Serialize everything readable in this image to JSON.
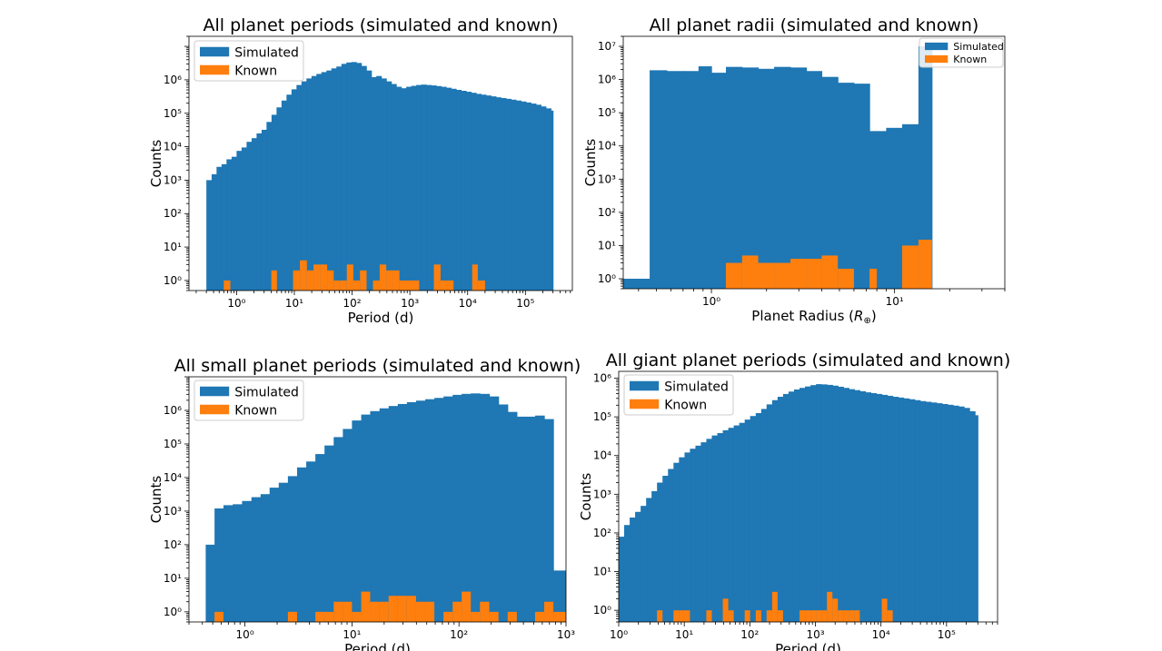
{
  "chart_data": [
    {
      "type": "bar",
      "title": "All planet periods (simulated and known)",
      "xlabel": "Period (d)",
      "ylabel": "Counts",
      "xscale": "log",
      "yscale": "log",
      "xlim": [
        0.15,
        650000
      ],
      "ylim": [
        0.5,
        20000000
      ],
      "x_ticks": [
        1,
        10,
        100,
        1000,
        10000,
        100000
      ],
      "y_ticks": [
        1,
        10,
        100,
        1000,
        10000,
        100000,
        1000000
      ],
      "legend": "top-left",
      "series": [
        {
          "name": "Simulated",
          "color": "#1f77b4",
          "bin_edges": [
            0.3,
            0.37,
            0.45,
            0.55,
            0.67,
            0.82,
            1.0,
            1.22,
            1.49,
            1.82,
            2.22,
            2.71,
            3.3,
            4.03,
            4.92,
            6.0,
            7.32,
            8.93,
            10.9,
            13.3,
            16.2,
            19.8,
            24.1,
            29.4,
            35.9,
            43.8,
            53.4,
            65.2,
            79.5,
            97.0,
            118,
            144,
            176,
            215,
            262,
            320,
            390,
            476,
            580,
            708,
            864,
            1054,
            1286,
            1568,
            1914,
            2335,
            2848,
            3475,
            4240,
            5173,
            6311,
            7699,
            9393,
            11460,
            13981,
            17057,
            20810,
            25388,
            30973,
            37787,
            46100,
            56242,
            68616,
            83712,
            102128,
            124596,
            152008,
            185449,
            226248,
            276022,
            300000
          ],
          "counts": [
            1000,
            1500,
            2500,
            3000,
            4200,
            5000,
            7500,
            9500,
            14000,
            18000,
            25000,
            32000,
            55000,
            90000,
            150000,
            240000,
            360000,
            520000,
            700000,
            900000,
            1100000,
            1300000,
            1500000,
            1700000,
            1900000,
            2200000,
            2500000,
            3000000,
            3300000,
            3400000,
            3200000,
            2600000,
            1900000,
            1200000,
            1300000,
            1100000,
            900000,
            750000,
            620000,
            560000,
            620000,
            660000,
            700000,
            720000,
            700000,
            680000,
            650000,
            620000,
            580000,
            540000,
            500000,
            470000,
            440000,
            410000,
            380000,
            360000,
            340000,
            320000,
            300000,
            285000,
            270000,
            255000,
            240000,
            225000,
            210000,
            195000,
            180000,
            160000,
            140000,
            120000
          ]
        },
        {
          "name": "Known",
          "color": "#ff7f0e",
          "bins": [
            [
              0.6,
              0.78,
              1
            ],
            [
              4.0,
              5.0,
              2
            ],
            [
              9.5,
              12.5,
              2
            ],
            [
              12.5,
              16.5,
              4
            ],
            [
              16.5,
              21.5,
              2
            ],
            [
              21.5,
              28,
              3
            ],
            [
              28,
              37,
              3
            ],
            [
              37,
              48,
              2
            ],
            [
              48,
              62,
              1
            ],
            [
              62,
              81,
              1
            ],
            [
              81,
              105,
              3
            ],
            [
              105,
              137,
              1
            ],
            [
              137,
              178,
              2
            ],
            [
              230,
              300,
              1
            ],
            [
              300,
              390,
              3
            ],
            [
              390,
              508,
              2
            ],
            [
              508,
              660,
              2
            ],
            [
              660,
              860,
              1
            ],
            [
              860,
              1450,
              1
            ],
            [
              2600,
              3400,
              3
            ],
            [
              3400,
              4400,
              1
            ],
            [
              4400,
              5700,
              1
            ],
            [
              12000,
              15000,
              3
            ],
            [
              15000,
              20000,
              1
            ]
          ]
        }
      ]
    },
    {
      "type": "bar",
      "title": "All planet radii (simulated and known)",
      "xlabel": "Planet Radius (",
      "xlabel_symbol": "R",
      "xlabel_sub": "⊕",
      "xlabel_close": ")",
      "ylabel": "Counts",
      "xscale": "log",
      "yscale": "log",
      "xlim": [
        0.33,
        40
      ],
      "ylim": [
        0.5,
        20000000
      ],
      "x_ticks": [
        1,
        10
      ],
      "y_ticks": [
        1,
        10,
        100,
        1000,
        10000,
        100000,
        1000000,
        10000000
      ],
      "legend": "top-right",
      "series": [
        {
          "name": "Simulated",
          "color": "#1f77b4",
          "bin_edges": [
            0.33,
            0.46,
            0.57,
            0.7,
            0.85,
            1.0,
            1.2,
            1.47,
            1.8,
            2.2,
            2.7,
            3.3,
            4.0,
            4.9,
            6.0,
            7.3,
            9.0,
            11.0,
            13.5,
            16.0
          ],
          "counts": [
            1,
            1900000,
            1800000,
            1800000,
            2500000,
            1600000,
            2400000,
            2300000,
            2100000,
            2400000,
            2300000,
            1800000,
            1200000,
            800000,
            750000,
            28000,
            35000,
            45000,
            10000000
          ]
        },
        {
          "name": "Known",
          "color": "#ff7f0e",
          "bins": [
            [
              1.2,
              1.47,
              3
            ],
            [
              1.47,
              1.8,
              5
            ],
            [
              1.8,
              2.2,
              3
            ],
            [
              2.2,
              2.7,
              3
            ],
            [
              2.7,
              3.3,
              4
            ],
            [
              3.3,
              4.0,
              4
            ],
            [
              4.0,
              4.9,
              5
            ],
            [
              4.9,
              6.0,
              2
            ],
            [
              7.3,
              8.0,
              2
            ],
            [
              11.0,
              13.5,
              10
            ],
            [
              13.5,
              16.0,
              15
            ]
          ]
        }
      ]
    },
    {
      "type": "bar",
      "title": "All small planet periods (simulated and known)",
      "xlabel": "Period (d)",
      "ylabel": "Counts",
      "xscale": "log",
      "yscale": "log",
      "xlim": [
        0.3,
        1000
      ],
      "ylim": [
        0.5,
        10000000
      ],
      "x_ticks": [
        1,
        10,
        100,
        1000
      ],
      "y_ticks": [
        1,
        10,
        100,
        1000,
        10000,
        100000,
        1000000
      ],
      "legend": "top-left",
      "series": [
        {
          "name": "Simulated",
          "color": "#1f77b4",
          "bin_edges": [
            0.43,
            0.52,
            0.63,
            0.77,
            0.94,
            1.15,
            1.4,
            1.7,
            2.07,
            2.52,
            3.07,
            3.74,
            4.55,
            5.54,
            6.75,
            8.22,
            10.0,
            12.2,
            14.8,
            18.1,
            22.0,
            26.8,
            32.6,
            39.7,
            48.4,
            58.9,
            71.7,
            87.3,
            106,
            129,
            157,
            192,
            234,
            285,
            347,
            422,
            514,
            626,
            762,
            1000
          ],
          "counts": [
            100,
            1200,
            1500,
            1600,
            2000,
            2600,
            3200,
            5000,
            7000,
            11000,
            20000,
            30000,
            50000,
            90000,
            160000,
            280000,
            500000,
            750000,
            950000,
            1150000,
            1350000,
            1550000,
            1750000,
            1950000,
            2150000,
            2350000,
            2600000,
            2900000,
            3100000,
            3200000,
            3100000,
            2600000,
            1500000,
            900000,
            650000,
            650000,
            700000,
            550000,
            17
          ]
        },
        {
          "name": "Known",
          "color": "#ff7f0e",
          "bins": [
            [
              0.52,
              0.63,
              1
            ],
            [
              2.52,
              3.07,
              1
            ],
            [
              4.55,
              5.54,
              1
            ],
            [
              5.54,
              6.75,
              1
            ],
            [
              6.75,
              8.22,
              2
            ],
            [
              8.22,
              10.0,
              2
            ],
            [
              10.0,
              12.2,
              1
            ],
            [
              12.2,
              14.8,
              4
            ],
            [
              14.8,
              18.1,
              2
            ],
            [
              18.1,
              22.0,
              2
            ],
            [
              22.0,
              26.8,
              3
            ],
            [
              26.8,
              32.6,
              3
            ],
            [
              32.6,
              39.7,
              3
            ],
            [
              39.7,
              48.4,
              2
            ],
            [
              48.4,
              58.9,
              2
            ],
            [
              71.7,
              87.3,
              1
            ],
            [
              87.3,
              106,
              2
            ],
            [
              106,
              129,
              4
            ],
            [
              129,
              157,
              1
            ],
            [
              157,
              192,
              2
            ],
            [
              192,
              234,
              1
            ],
            [
              285,
              347,
              1
            ],
            [
              514,
              626,
              1
            ],
            [
              626,
              762,
              2
            ],
            [
              762,
              1000,
              1
            ]
          ]
        }
      ]
    },
    {
      "type": "bar",
      "title": "All giant planet periods (simulated and known)",
      "xlabel": "Period (d)",
      "ylabel": "Counts",
      "xscale": "log",
      "yscale": "log",
      "xlim": [
        1,
        600000
      ],
      "ylim": [
        0.5,
        1500000
      ],
      "x_ticks": [
        1,
        10,
        100,
        1000,
        10000,
        100000
      ],
      "y_ticks": [
        1,
        10,
        100,
        1000,
        10000,
        100000,
        1000000
      ],
      "legend": "top-left",
      "series": [
        {
          "name": "Simulated",
          "color": "#1f77b4",
          "bin_edges": [
            1.0,
            1.21,
            1.47,
            1.78,
            2.16,
            2.62,
            3.17,
            3.84,
            4.66,
            5.65,
            6.85,
            8.3,
            10.1,
            12.2,
            14.8,
            17.9,
            21.7,
            26.3,
            31.9,
            38.7,
            46.9,
            56.8,
            68.9,
            83.5,
            101,
            123,
            149,
            180,
            219,
            265,
            321,
            389,
            472,
            572,
            694,
            841,
            1020,
            1236,
            1499,
            1817,
            2203,
            2671,
            3238,
            3926,
            4759,
            5770,
            6995,
            8480,
            10281,
            12464,
            15110,
            18318,
            22208,
            26923,
            32640,
            39570,
            47972,
            58158,
            70506,
            85476,
            103625,
            125628,
            152302,
            184641,
            223846,
            271375,
            300000
          ],
          "counts": [
            80,
            160,
            250,
            350,
            500,
            800,
            1200,
            2000,
            3000,
            4500,
            6500,
            9000,
            12000,
            15000,
            18000,
            22000,
            27000,
            33000,
            38000,
            45000,
            52000,
            60000,
            70000,
            85000,
            105000,
            125000,
            160000,
            210000,
            270000,
            330000,
            390000,
            450000,
            510000,
            560000,
            610000,
            660000,
            700000,
            690000,
            670000,
            640000,
            600000,
            560000,
            520000,
            490000,
            460000,
            430000,
            410000,
            390000,
            370000,
            350000,
            330000,
            315000,
            300000,
            285000,
            270000,
            255000,
            245000,
            235000,
            225000,
            215000,
            205000,
            195000,
            185000,
            170000,
            140000,
            110000
          ]
        },
        {
          "name": "Known",
          "color": "#ff7f0e",
          "bins": [
            [
              3.84,
              4.66,
              1
            ],
            [
              6.85,
              8.3,
              1
            ],
            [
              8.3,
              10.1,
              1
            ],
            [
              10.1,
              12.2,
              1
            ],
            [
              21.7,
              26.3,
              1
            ],
            [
              38.7,
              46.9,
              2
            ],
            [
              46.9,
              56.8,
              1
            ],
            [
              83.5,
              101,
              1
            ],
            [
              123,
              149,
              1
            ],
            [
              180,
              219,
              1
            ],
            [
              219,
              265,
              3
            ],
            [
              265,
              321,
              1
            ],
            [
              572,
              694,
              1
            ],
            [
              694,
              841,
              1
            ],
            [
              841,
              1020,
              1
            ],
            [
              1020,
              1236,
              1
            ],
            [
              1236,
              1499,
              1
            ],
            [
              1499,
              1817,
              3
            ],
            [
              1817,
              2203,
              2
            ],
            [
              2203,
              2671,
              1
            ],
            [
              2671,
              3238,
              1
            ],
            [
              3238,
              3926,
              1
            ],
            [
              3926,
              4759,
              1
            ],
            [
              10281,
              12464,
              2
            ],
            [
              12464,
              15110,
              1
            ]
          ]
        }
      ]
    }
  ]
}
